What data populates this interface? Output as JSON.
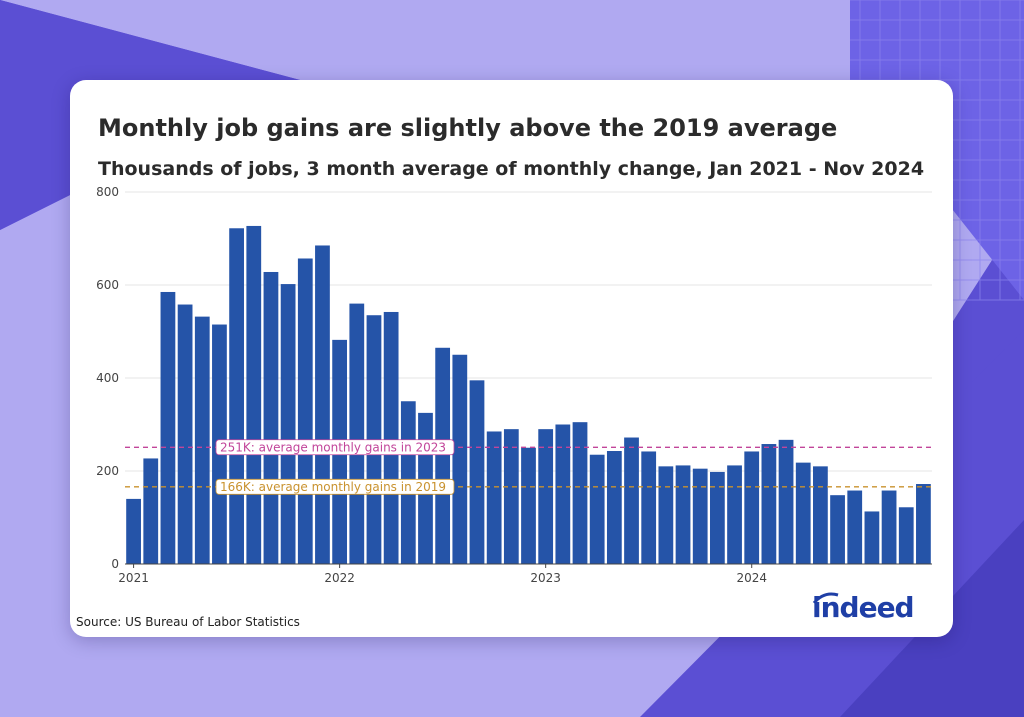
{
  "title": "Monthly job gains are slightly above the 2019 average",
  "subtitle": "Thousands of jobs, 3 month average of monthly change, Jan 2021 - Nov 2024",
  "source": "Source: US Bureau of Labor Statistics",
  "logo_text": "indeed",
  "colors": {
    "bar": "#2554a8",
    "ref_2023": "#c2459a",
    "ref_2019": "#c9922e",
    "grid": "#e4e4e4",
    "axis_text": "#444444"
  },
  "chart_data": {
    "type": "bar",
    "title": "Monthly job gains are slightly above the 2019 average",
    "subtitle": "Thousands of jobs, 3 month average of monthly change, Jan 2021 - Nov 2024",
    "ylim": [
      0,
      800
    ],
    "yticks": [
      0,
      200,
      400,
      600,
      800
    ],
    "xticks": [
      "2021",
      "2022",
      "2023",
      "2024"
    ],
    "x": [
      "2021-01",
      "2021-02",
      "2021-03",
      "2021-04",
      "2021-05",
      "2021-06",
      "2021-07",
      "2021-08",
      "2021-09",
      "2021-10",
      "2021-11",
      "2021-12",
      "2022-01",
      "2022-02",
      "2022-03",
      "2022-04",
      "2022-05",
      "2022-06",
      "2022-07",
      "2022-08",
      "2022-09",
      "2022-10",
      "2022-11",
      "2022-12",
      "2023-01",
      "2023-02",
      "2023-03",
      "2023-04",
      "2023-05",
      "2023-06",
      "2023-07",
      "2023-08",
      "2023-09",
      "2023-10",
      "2023-11",
      "2023-12",
      "2024-01",
      "2024-02",
      "2024-03",
      "2024-04",
      "2024-05",
      "2024-06",
      "2024-07",
      "2024-08",
      "2024-09",
      "2024-10",
      "2024-11"
    ],
    "values": [
      140,
      227,
      585,
      558,
      532,
      515,
      722,
      727,
      628,
      602,
      657,
      685,
      482,
      560,
      535,
      542,
      350,
      325,
      465,
      450,
      395,
      285,
      290,
      250,
      290,
      300,
      305,
      235,
      243,
      272,
      242,
      210,
      212,
      205,
      198,
      212,
      242,
      258,
      267,
      218,
      210,
      148,
      158,
      113,
      158,
      122,
      172
    ],
    "reference_lines": [
      {
        "value": 251,
        "label": "251K: average monthly gains in 2023",
        "color": "#c2459a"
      },
      {
        "value": 166,
        "label": "166K: average monthly gains in 2019",
        "color": "#c9922e"
      }
    ],
    "grid": true
  }
}
